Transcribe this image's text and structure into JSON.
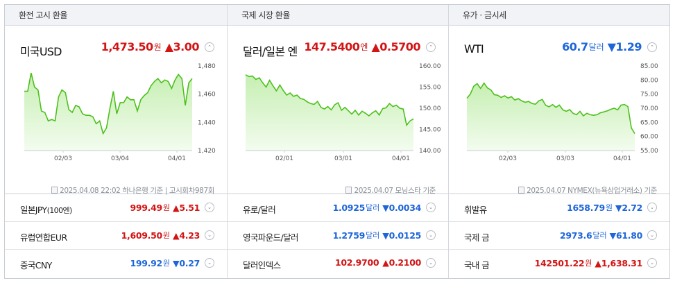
{
  "columns": [
    {
      "header": "환전 고시 환율",
      "main": {
        "name": "미국USD",
        "value": "1,473.50",
        "unit": "원",
        "change": "▲3.00",
        "direction": "up",
        "toggle": "⌃"
      },
      "source": "2025.04.08 22:02 하나은행 기준 | 고시회차987회",
      "rows": [
        {
          "name": "일본JPY",
          "sub": "(100엔)",
          "value": "999.49",
          "unit": "원",
          "change": "▲5.51",
          "direction": "up"
        },
        {
          "name": "유럽연합EUR",
          "sub": "",
          "value": "1,609.50",
          "unit": "원",
          "change": "▲4.23",
          "direction": "up"
        },
        {
          "name": "중국CNY",
          "sub": "",
          "value": "199.92",
          "unit": "원",
          "change": "▼0.27",
          "direction": "down"
        }
      ]
    },
    {
      "header": "국제 시장 환율",
      "main": {
        "name": "달러/일본 엔",
        "value": "147.5400",
        "unit": "엔",
        "change": "▲0.5700",
        "direction": "up",
        "toggle": "⌃"
      },
      "source": "2025.04.07 모닝스타 기준",
      "rows": [
        {
          "name": "유로/달러",
          "sub": "",
          "value": "1.0925",
          "unit": "달러",
          "change": "▼0.0034",
          "direction": "down"
        },
        {
          "name": "영국파운드/달러",
          "sub": "",
          "value": "1.2759",
          "unit": "달러",
          "change": "▼0.0125",
          "direction": "down"
        },
        {
          "name": "달러인덱스",
          "sub": "",
          "value": "102.9700",
          "unit": "",
          "change": "▲0.2100",
          "direction": "up"
        }
      ]
    },
    {
      "header": "유가 · 금시세",
      "main": {
        "name": "WTI",
        "value": "60.7",
        "unit": "달러",
        "change": "▼1.29",
        "direction": "down",
        "toggle": "⌃"
      },
      "source": "2025.04.07 NYMEX(뉴욕상업거래소) 기준",
      "rows": [
        {
          "name": "휘발유",
          "sub": "",
          "value": "1658.79",
          "unit": "원",
          "change": "▼2.72",
          "direction": "down"
        },
        {
          "name": "국제 금",
          "sub": "",
          "value": "2973.6",
          "unit": "달러",
          "change": "▼61.80",
          "direction": "down"
        },
        {
          "name": "국내 금",
          "sub": "",
          "value": "142501.22",
          "unit": "원",
          "change": "▲1,638.31",
          "direction": "up"
        }
      ]
    }
  ],
  "colors": {
    "up": "#d31414",
    "down": "#1e66d8",
    "line": "#4cc01c",
    "fill_top": "#c6efb2",
    "fill_bottom": "#f3fcef"
  },
  "chart_data": [
    {
      "type": "area",
      "ylim": [
        1420,
        1480
      ],
      "yticks": [
        "1,480",
        "1,460",
        "1,440",
        "1,420"
      ],
      "xticks": [
        "02/03",
        "03/04",
        "04/01"
      ],
      "x": [
        0,
        1,
        2,
        3,
        4,
        5,
        6,
        7,
        8,
        9,
        10,
        11,
        12,
        13,
        14,
        15,
        16,
        17,
        18,
        19,
        20,
        21,
        22,
        23,
        24,
        25,
        26,
        27,
        28,
        29,
        30,
        31,
        32,
        33,
        34,
        35,
        36,
        37,
        38,
        39,
        40,
        41,
        42,
        43,
        44,
        45,
        46,
        47,
        48,
        49
      ],
      "values": [
        1462,
        1462,
        1475,
        1465,
        1463,
        1448,
        1447,
        1441,
        1442,
        1441,
        1458,
        1463,
        1461,
        1449,
        1447,
        1452,
        1451,
        1446,
        1445,
        1445,
        1444,
        1439,
        1441,
        1432,
        1436,
        1450,
        1462,
        1446,
        1454,
        1454,
        1458,
        1456,
        1456,
        1448,
        1456,
        1459,
        1461,
        1466,
        1469,
        1471,
        1468,
        1470,
        1469,
        1464,
        1470,
        1474,
        1471,
        1452,
        1468,
        1471
      ]
    },
    {
      "type": "area",
      "ylim": [
        140,
        160
      ],
      "yticks": [
        "160.00",
        "155.00",
        "150.00",
        "145.00",
        "140.00"
      ],
      "xticks": [
        "02/01",
        "03/01",
        "04/01"
      ],
      "x": [
        0,
        1,
        2,
        3,
        4,
        5,
        6,
        7,
        8,
        9,
        10,
        11,
        12,
        13,
        14,
        15,
        16,
        17,
        18,
        19,
        20,
        21,
        22,
        23,
        24,
        25,
        26,
        27,
        28,
        29,
        30,
        31,
        32,
        33,
        34,
        35,
        36,
        37,
        38,
        39,
        40,
        41,
        42,
        43,
        44,
        45,
        46,
        47,
        48,
        49
      ],
      "values": [
        157.9,
        157.5,
        157.6,
        156.8,
        157.2,
        156.0,
        155.0,
        156.6,
        155.3,
        154.1,
        155.5,
        154.2,
        153.1,
        153.6,
        152.8,
        153.1,
        152.3,
        152.1,
        151.5,
        151.1,
        150.9,
        151.6,
        150.2,
        149.8,
        150.4,
        149.6,
        150.8,
        151.3,
        149.5,
        150.2,
        149.4,
        148.6,
        149.5,
        148.4,
        149.3,
        148.8,
        148.2,
        148.9,
        149.4,
        148.4,
        149.9,
        150.1,
        151.1,
        150.4,
        150.7,
        150.0,
        149.8,
        146.0,
        147.0,
        147.5
      ]
    },
    {
      "type": "area",
      "ylim": [
        55,
        85
      ],
      "yticks": [
        "85.00",
        "80.00",
        "75.00",
        "70.00",
        "65.00",
        "60.00",
        "55.00"
      ],
      "xticks": [
        "02/03",
        "03/03",
        "04/01"
      ],
      "x": [
        0,
        1,
        2,
        3,
        4,
        5,
        6,
        7,
        8,
        9,
        10,
        11,
        12,
        13,
        14,
        15,
        16,
        17,
        18,
        19,
        20,
        21,
        22,
        23,
        24,
        25,
        26,
        27,
        28,
        29,
        30,
        31,
        32,
        33,
        34,
        35,
        36,
        37,
        38,
        39,
        40,
        41,
        42,
        43,
        44,
        45,
        46,
        47,
        48,
        49
      ],
      "values": [
        73.5,
        75.0,
        77.8,
        78.7,
        77.0,
        78.9,
        77.2,
        76.5,
        74.8,
        74.6,
        73.8,
        74.4,
        73.6,
        74.1,
        72.9,
        73.4,
        72.6,
        72.1,
        72.4,
        71.7,
        71.4,
        72.6,
        73.1,
        71.0,
        70.5,
        71.3,
        70.3,
        71.1,
        69.4,
        68.9,
        69.5,
        68.2,
        67.7,
        68.9,
        67.3,
        68.2,
        67.7,
        67.5,
        67.7,
        68.4,
        68.7,
        69.1,
        69.6,
        70.0,
        69.4,
        71.1,
        71.3,
        70.6,
        63.0,
        61.0
      ]
    }
  ]
}
